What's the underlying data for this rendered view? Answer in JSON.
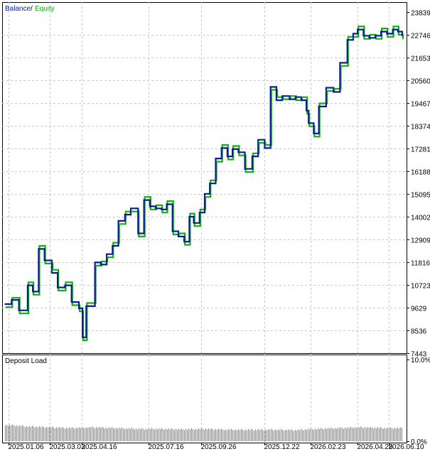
{
  "colors": {
    "balance": "#0a1f8f",
    "equity": "#10b010",
    "deposit_load": "#1ec81e",
    "grid": "#c8c8c8",
    "frame": "#000000"
  },
  "legend": {
    "balance_label": "Balance",
    "separator": "/",
    "equity_label": "Equity"
  },
  "chart_data": [
    {
      "type": "line",
      "title": "",
      "legend_position": "top-left",
      "grid": true,
      "ylim": [
        7443,
        23839
      ],
      "y_ticks": [
        "23839",
        "22746",
        "21653",
        "20560",
        "19467",
        "18374",
        "17281",
        "16188",
        "15095",
        "14002",
        "12909",
        "11816",
        "10723",
        "9629",
        "8536",
        "7443"
      ],
      "x_ticks": [
        "2025.01.06",
        "2025.03.03",
        "2025.04.16",
        "2025.07.16",
        "2025.09.26",
        "2025.12.22",
        "2026.02.23",
        "2026.04.28",
        "2026.06.10"
      ],
      "x_range": [
        "2025.01.01",
        "2026.06.30"
      ],
      "series": [
        {
          "name": "Balance",
          "x": [
            "2025.01.01",
            "2025.01.10",
            "2025.01.20",
            "2025.02.01",
            "2025.02.08",
            "2025.02.16",
            "2025.02.24",
            "2025.03.06",
            "2025.03.14",
            "2025.03.24",
            "2025.04.02",
            "2025.04.12",
            "2025.04.17",
            "2025.04.22",
            "2025.05.04",
            "2025.05.12",
            "2025.05.20",
            "2025.05.28",
            "2025.06.05",
            "2025.06.14",
            "2025.06.22",
            "2025.07.02",
            "2025.07.10",
            "2025.07.18",
            "2025.07.26",
            "2025.08.03",
            "2025.08.10",
            "2025.08.18",
            "2025.08.26",
            "2025.09.03",
            "2025.09.10",
            "2025.09.16",
            "2025.09.24",
            "2025.10.01",
            "2025.10.08",
            "2025.10.16",
            "2025.10.24",
            "2025.11.01",
            "2025.11.08",
            "2025.11.16",
            "2025.11.25",
            "2025.12.05",
            "2025.12.13",
            "2025.12.22",
            "2025.12.30",
            "2026.01.07",
            "2026.01.15",
            "2026.01.25",
            "2026.02.02",
            "2026.02.10",
            "2026.02.17",
            "2026.02.20",
            "2026.02.27",
            "2026.03.06",
            "2026.03.16",
            "2026.03.26",
            "2026.04.04",
            "2026.04.14",
            "2026.04.22",
            "2026.04.28",
            "2026.05.06",
            "2026.05.14",
            "2026.05.22",
            "2026.05.30",
            "2026.06.07",
            "2026.06.15",
            "2026.06.22",
            "2026.06.28"
          ],
          "values": [
            9800,
            10000,
            9500,
            10700,
            10400,
            12450,
            11900,
            11300,
            10600,
            10700,
            9900,
            9600,
            8200,
            9700,
            11800,
            11700,
            12200,
            12600,
            13800,
            14100,
            14400,
            13200,
            14800,
            14500,
            14400,
            14350,
            14600,
            13300,
            13050,
            12800,
            14000,
            13700,
            14200,
            15100,
            15600,
            16800,
            17300,
            16900,
            17250,
            17100,
            16300,
            16900,
            17700,
            17300,
            20240,
            19600,
            19800,
            19650,
            19750,
            19600,
            19100,
            18500,
            18000,
            19300,
            20200,
            20000,
            21400,
            22500,
            22800,
            23000,
            22700,
            22600,
            22700,
            22900,
            22800,
            23000,
            22900,
            22700
          ]
        },
        {
          "name": "Equity",
          "x": [
            "2025.01.01",
            "2025.01.10",
            "2025.01.20",
            "2025.02.01",
            "2025.02.08",
            "2025.02.16",
            "2025.02.24",
            "2025.03.06",
            "2025.03.14",
            "2025.03.24",
            "2025.04.02",
            "2025.04.12",
            "2025.04.17",
            "2025.04.22",
            "2025.05.04",
            "2025.05.12",
            "2025.05.20",
            "2025.05.28",
            "2025.06.05",
            "2025.06.14",
            "2025.06.22",
            "2025.07.02",
            "2025.07.10",
            "2025.07.18",
            "2025.07.26",
            "2025.08.03",
            "2025.08.10",
            "2025.08.18",
            "2025.08.26",
            "2025.09.03",
            "2025.09.10",
            "2025.09.16",
            "2025.09.24",
            "2025.10.01",
            "2025.10.08",
            "2025.10.16",
            "2025.10.24",
            "2025.11.01",
            "2025.11.08",
            "2025.11.16",
            "2025.11.25",
            "2025.12.05",
            "2025.12.13",
            "2025.12.22",
            "2025.12.30",
            "2026.01.07",
            "2026.01.15",
            "2026.01.25",
            "2026.02.02",
            "2026.02.10",
            "2026.02.17",
            "2026.02.20",
            "2026.02.27",
            "2026.03.06",
            "2026.03.16",
            "2026.03.26",
            "2026.04.04",
            "2026.04.14",
            "2026.04.22",
            "2026.04.28",
            "2026.05.06",
            "2026.05.14",
            "2026.05.22",
            "2026.05.30",
            "2026.06.07",
            "2026.06.15",
            "2026.06.22",
            "2026.06.28"
          ],
          "values": [
            9650,
            10100,
            9350,
            10850,
            10250,
            12600,
            11750,
            11450,
            10450,
            10850,
            9750,
            9450,
            8050,
            9850,
            11650,
            11850,
            12050,
            12750,
            13650,
            14250,
            14250,
            13050,
            14950,
            14350,
            14550,
            14200,
            14750,
            13150,
            13200,
            12650,
            14150,
            13550,
            14350,
            14950,
            15750,
            16650,
            17450,
            16750,
            17400,
            16950,
            16150,
            17050,
            17550,
            17450,
            20100,
            19750,
            19650,
            19800,
            19600,
            19750,
            18950,
            18350,
            17850,
            19450,
            20050,
            20150,
            21250,
            22650,
            22650,
            23150,
            22550,
            22750,
            22550,
            23050,
            22650,
            23150,
            22750,
            22550
          ]
        }
      ]
    },
    {
      "type": "bar",
      "title": "Deposit Load",
      "ylim": [
        0,
        10
      ],
      "y_ticks": [
        "10.0%",
        "0.0%"
      ],
      "x_range": [
        "2025.01.01",
        "2026.06.30"
      ],
      "series": [
        {
          "name": "Deposit Load",
          "x": [
            "2025.01.01",
            "2025.02.01",
            "2025.03.01",
            "2025.04.01",
            "2025.05.01",
            "2025.06.01",
            "2025.07.01",
            "2025.08.01",
            "2025.09.01",
            "2025.10.01",
            "2025.11.01",
            "2025.12.01",
            "2026.01.01",
            "2026.02.01",
            "2026.03.01",
            "2026.04.01",
            "2026.05.01",
            "2026.06.01",
            "2026.06.30"
          ],
          "values": [
            1.9,
            1.7,
            1.6,
            1.5,
            1.6,
            1.5,
            1.4,
            1.4,
            1.35,
            1.4,
            1.3,
            1.3,
            1.3,
            1.25,
            1.4,
            1.5,
            1.6,
            1.5,
            1.5
          ]
        }
      ]
    }
  ]
}
